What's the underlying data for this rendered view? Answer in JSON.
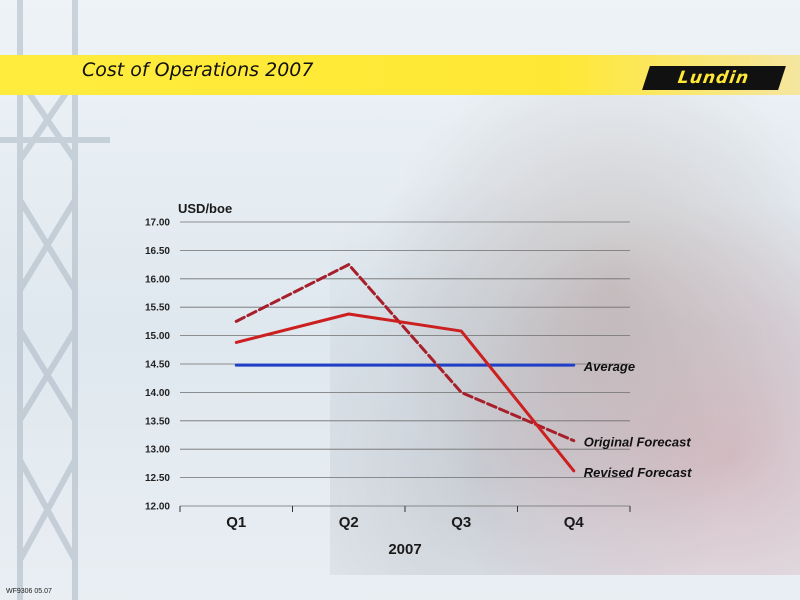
{
  "header": {
    "title": "Cost of Operations 2007",
    "logo_text": "Lundin"
  },
  "footer": {
    "code": "WF9306 05.07"
  },
  "colors": {
    "header_yellow": "#ffe835",
    "revised": "#cc1f1f",
    "original": "#a71f2a",
    "average": "#1f3fc8"
  },
  "chart_data": {
    "type": "line",
    "ylabel": "USD/boe",
    "xlabel": "2007",
    "categories": [
      "Q1",
      "Q2",
      "Q3",
      "Q4"
    ],
    "ylim": [
      12.0,
      17.0
    ],
    "yticks": [
      "12.00",
      "12.50",
      "13.00",
      "13.50",
      "14.00",
      "14.50",
      "15.00",
      "15.50",
      "16.00",
      "16.50",
      "17.00"
    ],
    "grid": true,
    "series": [
      {
        "name": "Average",
        "values": [
          14.48,
          14.48,
          14.48,
          14.48
        ],
        "style": "solid",
        "color": "#1f3fc8"
      },
      {
        "name": "Original Forecast",
        "values": [
          15.25,
          16.25,
          14.0,
          13.15
        ],
        "style": "dashed",
        "color": "#a71f2a"
      },
      {
        "name": "Revised Forecast",
        "values": [
          14.88,
          15.38,
          15.08,
          12.62
        ],
        "style": "solid",
        "color": "#cc1f1f"
      }
    ]
  }
}
